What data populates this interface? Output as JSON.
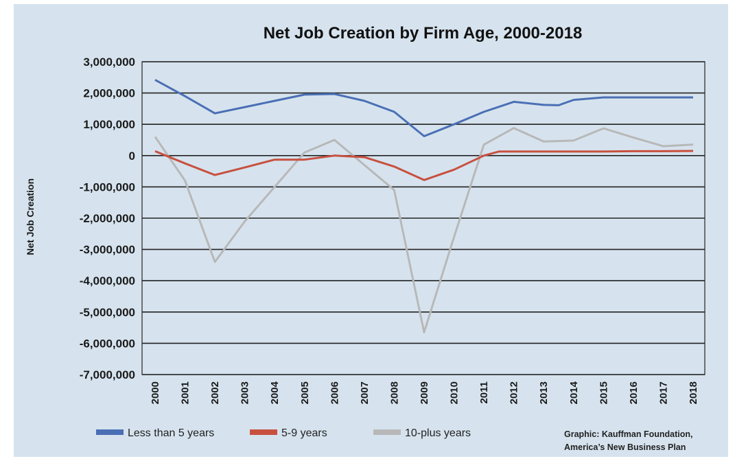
{
  "chart_data": {
    "type": "line",
    "title": "Net Job Creation by Firm Age, 2000-2018",
    "xlabel": "",
    "ylabel": "Net Job Creation",
    "ylim": [
      -7000000,
      3000000
    ],
    "yticks": [
      3000000,
      2000000,
      1000000,
      0,
      -1000000,
      -2000000,
      -3000000,
      -4000000,
      -5000000,
      -6000000,
      -7000000
    ],
    "ytick_labels": [
      "3,000,000",
      "2,000,000",
      "1,000,000",
      "0",
      "-1,000,000",
      "-2,000,000",
      "-3,000,000",
      "-4,000,000",
      "-5,000,000",
      "-6,000,000",
      "-7,000,000"
    ],
    "categories": [
      "2000",
      "2001",
      "2002",
      "2003",
      "2004",
      "2005",
      "2006",
      "2007",
      "2008",
      "2009",
      "2010",
      "2011",
      "2012",
      "2013",
      "2014",
      "2015",
      "2016",
      "2017",
      "2018"
    ],
    "grid": "horizontal",
    "legend_position": "bottom",
    "series": [
      {
        "name": "Less than 5 years",
        "color": "#4a6fb5",
        "points": [
          [
            2000,
            2420000
          ],
          [
            2001,
            1900000
          ],
          [
            2002,
            1350000
          ],
          [
            2003,
            1550000
          ],
          [
            2004,
            1750000
          ],
          [
            2005,
            1950000
          ],
          [
            2006,
            1970000
          ],
          [
            2007,
            1750000
          ],
          [
            2008,
            1400000
          ],
          [
            2009,
            620000
          ],
          [
            2010,
            1000000
          ],
          [
            2011,
            1400000
          ],
          [
            2012,
            1720000
          ],
          [
            2013,
            1620000
          ],
          [
            2013.5,
            1610000
          ],
          [
            2014,
            1780000
          ],
          [
            2015,
            1860000
          ],
          [
            2016,
            1860000
          ],
          [
            2017,
            1860000
          ],
          [
            2018,
            1860000
          ]
        ]
      },
      {
        "name": "5-9 years",
        "color": "#c8503f",
        "points": [
          [
            2000,
            140000
          ],
          [
            2001,
            -250000
          ],
          [
            2002,
            -620000
          ],
          [
            2003,
            -380000
          ],
          [
            2004,
            -130000
          ],
          [
            2005,
            -130000
          ],
          [
            2006,
            0
          ],
          [
            2007,
            -50000
          ],
          [
            2008,
            -350000
          ],
          [
            2009,
            -780000
          ],
          [
            2010,
            -450000
          ],
          [
            2011,
            0
          ],
          [
            2011.5,
            130000
          ],
          [
            2012,
            130000
          ],
          [
            2013,
            130000
          ],
          [
            2014,
            130000
          ],
          [
            2015,
            130000
          ],
          [
            2016,
            140000
          ],
          [
            2017,
            140000
          ],
          [
            2018,
            150000
          ]
        ]
      },
      {
        "name": "10-plus years",
        "color": "#b8b8b8",
        "points": [
          [
            2000,
            600000
          ],
          [
            2001,
            -800000
          ],
          [
            2002,
            -3400000
          ],
          [
            2003,
            -2100000
          ],
          [
            2004,
            -1000000
          ],
          [
            2005,
            100000
          ],
          [
            2006,
            500000
          ],
          [
            2007,
            -300000
          ],
          [
            2008,
            -1100000
          ],
          [
            2009,
            -5650000
          ],
          [
            2010,
            -2600000
          ],
          [
            2011,
            350000
          ],
          [
            2012,
            880000
          ],
          [
            2013,
            450000
          ],
          [
            2014,
            480000
          ],
          [
            2015,
            870000
          ],
          [
            2016,
            580000
          ],
          [
            2017,
            300000
          ],
          [
            2018,
            350000
          ]
        ]
      }
    ],
    "credit": [
      "Graphic: Kauffman Foundation,",
      "America’s New Business Plan"
    ]
  }
}
